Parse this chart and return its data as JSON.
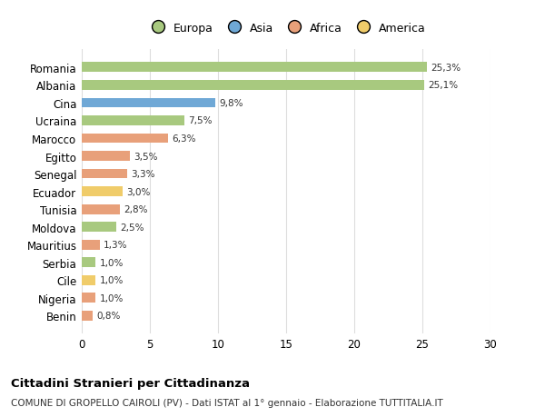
{
  "categories": [
    "Romania",
    "Albania",
    "Cina",
    "Ucraina",
    "Marocco",
    "Egitto",
    "Senegal",
    "Ecuador",
    "Tunisia",
    "Moldova",
    "Mauritius",
    "Serbia",
    "Cile",
    "Nigeria",
    "Benin"
  ],
  "values": [
    25.3,
    25.1,
    9.8,
    7.5,
    6.3,
    3.5,
    3.3,
    3.0,
    2.8,
    2.5,
    1.3,
    1.0,
    1.0,
    1.0,
    0.8
  ],
  "labels": [
    "25,3%",
    "25,1%",
    "9,8%",
    "7,5%",
    "6,3%",
    "3,5%",
    "3,3%",
    "3,0%",
    "2,8%",
    "2,5%",
    "1,3%",
    "1,0%",
    "1,0%",
    "1,0%",
    "0,8%"
  ],
  "colors": [
    "#a8c97f",
    "#a8c97f",
    "#6fa8d6",
    "#a8c97f",
    "#e8a07a",
    "#e8a07a",
    "#e8a07a",
    "#f0cc6a",
    "#e8a07a",
    "#a8c97f",
    "#e8a07a",
    "#a8c97f",
    "#f0cc6a",
    "#e8a07a",
    "#e8a07a"
  ],
  "legend_labels": [
    "Europa",
    "Asia",
    "Africa",
    "America"
  ],
  "legend_colors": [
    "#a8c97f",
    "#6fa8d6",
    "#e8a07a",
    "#f0cc6a"
  ],
  "title": "Cittadini Stranieri per Cittadinanza",
  "subtitle": "COMUNE DI GROPELLO CAIROLI (PV) - Dati ISTAT al 1° gennaio - Elaborazione TUTTITALIA.IT",
  "xlim": [
    0,
    30
  ],
  "xticks": [
    0,
    5,
    10,
    15,
    20,
    25,
    30
  ],
  "background_color": "#ffffff",
  "bar_height": 0.55
}
